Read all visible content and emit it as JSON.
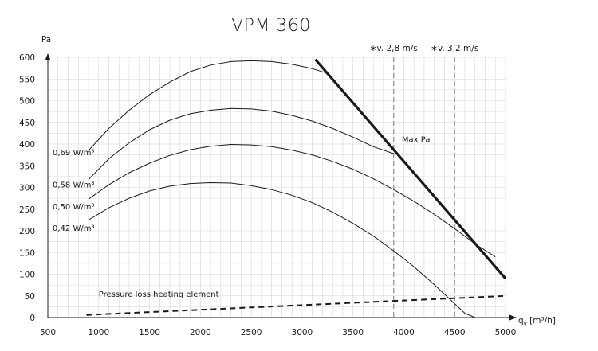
{
  "chart_data": {
    "type": "line",
    "title": "VPM 360",
    "ylabel": "Pa",
    "xlabel_main": "q",
    "xlabel_sub": "v",
    "xlabel_unit": "[m³/h]",
    "xlim": [
      500,
      5000
    ],
    "ylim": [
      0,
      600
    ],
    "x_ticks": [
      500,
      1000,
      1500,
      2000,
      2500,
      3000,
      3500,
      4000,
      4500,
      5000
    ],
    "y_ticks": [
      0,
      50,
      100,
      150,
      200,
      250,
      300,
      350,
      400,
      450,
      500,
      550,
      600
    ],
    "x_minor_step": 100,
    "y_minor_step": 25,
    "grid": true,
    "series": [
      {
        "name": "0,69 W/m³",
        "x": [
          900,
          1100,
          1300,
          1500,
          1700,
          1900,
          2100,
          2300,
          2500,
          2700,
          2900,
          3100,
          3250
        ],
        "y": [
          385,
          436,
          478,
          514,
          543,
          567,
          582,
          590,
          592,
          590,
          584,
          574,
          563
        ]
      },
      {
        "name": "0,58 W/m³",
        "x": [
          900,
          1100,
          1300,
          1500,
          1700,
          1900,
          2100,
          2300,
          2500,
          2700,
          2900,
          3100,
          3300,
          3500,
          3700,
          3900
        ],
        "y": [
          318,
          366,
          403,
          433,
          455,
          470,
          478,
          482,
          481,
          476,
          466,
          453,
          436,
          416,
          394,
          378
        ]
      },
      {
        "name": "0,50 W/m³",
        "x": [
          900,
          1100,
          1300,
          1500,
          1700,
          1900,
          2100,
          2300,
          2500,
          2700,
          2900,
          3100,
          3300,
          3500,
          3700,
          3900,
          4100,
          4300,
          4500,
          4700,
          4900
        ],
        "y": [
          273,
          306,
          334,
          356,
          374,
          387,
          395,
          399,
          398,
          394,
          386,
          375,
          360,
          342,
          320,
          295,
          268,
          238,
          205,
          170,
          140
        ]
      },
      {
        "name": "0,42 W/m³",
        "x": [
          900,
          1100,
          1300,
          1500,
          1700,
          1900,
          2100,
          2300,
          2500,
          2700,
          2900,
          3100,
          3300,
          3500,
          3700,
          3900,
          4100,
          4300,
          4500,
          4600,
          4700
        ],
        "y": [
          225,
          253,
          275,
          292,
          303,
          309,
          311,
          310,
          304,
          295,
          282,
          265,
          243,
          217,
          188,
          154,
          117,
          76,
          32,
          10,
          0
        ]
      }
    ],
    "series_label_y": [
      382,
      307,
      257,
      207
    ],
    "max_pa_line": {
      "label": "Max Pa",
      "label_at": [
        3980,
        405
      ],
      "x": [
        3130,
        5000
      ],
      "y": [
        595,
        90
      ]
    },
    "velocity_lines": [
      {
        "label": "∗v. 2,8 m/s",
        "x": 3900
      },
      {
        "label": "∗v. 3,2 m/s",
        "x": 4500
      }
    ],
    "heating_loss": {
      "label": "Pressure loss heating element",
      "label_at": [
        1000,
        48
      ],
      "x": [
        880,
        5000
      ],
      "y": [
        6,
        50
      ]
    }
  }
}
